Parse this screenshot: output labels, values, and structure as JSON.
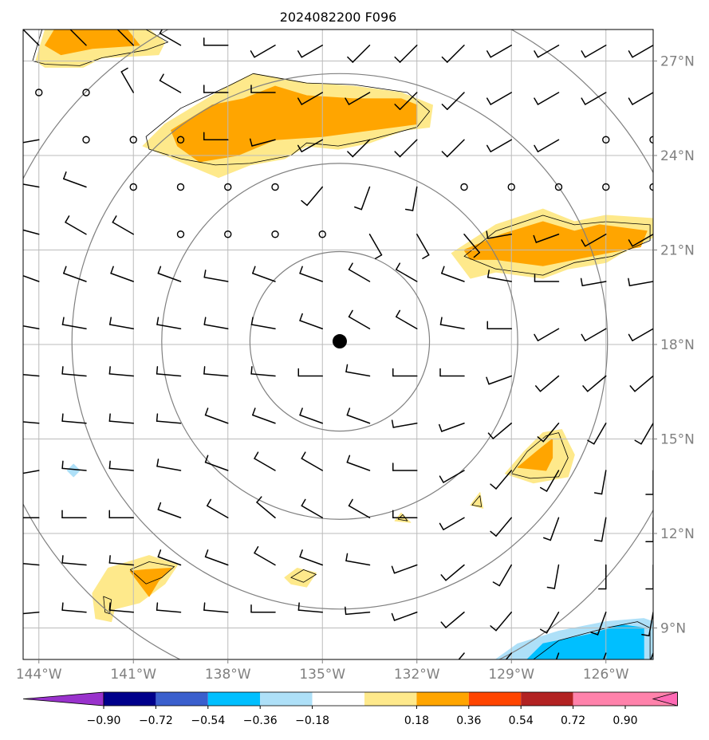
{
  "title": "2024082200 F096",
  "map": {
    "lon_range": [
      -144.5,
      -124.5
    ],
    "lat_range": [
      8,
      28
    ],
    "lon_ticks": [
      {
        "value": -144,
        "label": "144°W"
      },
      {
        "value": -141,
        "label": "141°W"
      },
      {
        "value": -138,
        "label": "138°W"
      },
      {
        "value": -135,
        "label": "135°W"
      },
      {
        "value": -132,
        "label": "132°W"
      },
      {
        "value": -129,
        "label": "129°W"
      },
      {
        "value": -126,
        "label": "126°W"
      }
    ],
    "lat_ticks": [
      {
        "value": 27,
        "label": "27°N"
      },
      {
        "value": 24,
        "label": "24°N"
      },
      {
        "value": 21,
        "label": "21°N"
      },
      {
        "value": 18,
        "label": "18°N"
      },
      {
        "value": 15,
        "label": "15°N"
      },
      {
        "value": 12,
        "label": "12°N"
      },
      {
        "value": 9,
        "label": "9°N"
      }
    ],
    "grid": true,
    "center": {
      "lon": -134.45,
      "lat": 18.1
    },
    "range_rings_deg": [
      2.85,
      5.65,
      8.5,
      11.3
    ],
    "colors": {
      "grid": "#bbbbbb",
      "axis_text": "#808080",
      "ring": "#808080",
      "pos1": "#fee98b",
      "pos2": "#ffa500",
      "neg1": "#aee0f8",
      "neg2": "#00bfff"
    }
  },
  "colorbar": {
    "tick_labels": [
      "−0.90",
      "−0.72",
      "−0.54",
      "−0.36",
      "−0.18",
      "0.18",
      "0.36",
      "0.54",
      "0.72",
      "0.90"
    ],
    "colors": [
      "#9932cc",
      "#00008b",
      "#3a5fcd",
      "#00bfff",
      "#aee0f8",
      "#ffffff",
      "#fee98b",
      "#ffa500",
      "#ff4500",
      "#b22222",
      "#ff82ab",
      "#ff69b4"
    ]
  },
  "barbs": {
    "lons": [
      -144,
      -142.5,
      -141,
      -139.5,
      -138,
      -136.5,
      -135,
      -133.5,
      -132,
      -130.5,
      -129,
      -127.5,
      -126,
      -124.5
    ],
    "rows": [
      {
        "lat": 27.5,
        "dirs": [
          315,
          315,
          315,
          300,
          270,
          240,
          240,
          225,
          225,
          225,
          240,
          240,
          240,
          240
        ]
      },
      {
        "lat": 26,
        "dirs": [
          "calm",
          "calm",
          330,
          300,
          270,
          270,
          240,
          240,
          225,
          225,
          240,
          240,
          240,
          240
        ]
      },
      {
        "lat": 24.5,
        "dirs": [
          260,
          "calm",
          "calm",
          "calm",
          270,
          255,
          240,
          225,
          225,
          225,
          240,
          240,
          "calm",
          "calm"
        ]
      },
      {
        "lat": 23,
        "dirs": [
          280,
          290,
          "calm",
          "calm",
          "calm",
          "calm",
          220,
          200,
          190,
          "calm",
          "calm",
          "calm",
          "calm",
          "calm"
        ]
      },
      {
        "lat": 21.5,
        "dirs": [
          285,
          300,
          300,
          "calm",
          "calm",
          "calm",
          "calm",
          150,
          150,
          140,
          260,
          250,
          240,
          240
        ]
      },
      {
        "lat": 20,
        "dirs": [
          290,
          290,
          290,
          290,
          280,
          290,
          290,
          300,
          300,
          290,
          280,
          270,
          260,
          260
        ]
      },
      {
        "lat": 18.5,
        "dirs": [
          280,
          280,
          280,
          280,
          280,
          280,
          290,
          300,
          300,
          280,
          270,
          240,
          240,
          240
        ]
      },
      {
        "lat": 17,
        "dirs": [
          275,
          275,
          275,
          275,
          275,
          275,
          270,
          280,
          270,
          270,
          250,
          230,
          230,
          230
        ]
      },
      {
        "lat": 15.5,
        "dirs": [
          275,
          275,
          275,
          275,
          290,
          290,
          290,
          290,
          260,
          250,
          230,
          220,
          210,
          210
        ]
      },
      {
        "lat": 14,
        "dirs": [
          260,
          275,
          275,
          280,
          290,
          300,
          300,
          290,
          270,
          240,
          220,
          210,
          190,
          180
        ]
      },
      {
        "lat": 12.5,
        "dirs": [
          270,
          270,
          270,
          290,
          300,
          310,
          300,
          300,
          270,
          240,
          220,
          200,
          190,
          180
        ]
      },
      {
        "lat": 11,
        "dirs": [
          275,
          275,
          275,
          290,
          290,
          300,
          290,
          280,
          250,
          230,
          210,
          190,
          180,
          180
        ]
      },
      {
        "lat": 9.5,
        "dirs": [
          265,
          275,
          275,
          275,
          275,
          270,
          275,
          265,
          250,
          230,
          220,
          210,
          200,
          190
        ]
      },
      {
        "lat": 8.2,
        "dirs": [
          null,
          null,
          null,
          null,
          null,
          null,
          null,
          null,
          null,
          220,
          220,
          200,
          200,
          200
        ]
      }
    ]
  },
  "fields": {
    "pos1": [
      [
        [
          -144.1,
          27.0
        ],
        [
          -143.8,
          28.0
        ],
        [
          -140.5,
          28.0
        ],
        [
          -140.0,
          27.6
        ],
        [
          -140.2,
          27.2
        ],
        [
          -142.0,
          27.1
        ],
        [
          -142.6,
          26.8
        ],
        [
          -143.8,
          26.8
        ]
      ],
      [
        [
          -140.0,
          25.0
        ],
        [
          -139.0,
          25.6
        ],
        [
          -138.0,
          26.2
        ],
        [
          -137.2,
          26.6
        ],
        [
          -135.5,
          26.3
        ],
        [
          -134.0,
          26.2
        ],
        [
          -132.5,
          26.0
        ],
        [
          -131.5,
          25.6
        ],
        [
          -131.6,
          24.9
        ],
        [
          -132.4,
          24.8
        ],
        [
          -133.5,
          24.4
        ],
        [
          -134.5,
          24.2
        ],
        [
          -135.5,
          24.3
        ],
        [
          -136.2,
          23.9
        ],
        [
          -137.3,
          23.7
        ],
        [
          -138.3,
          23.3
        ],
        [
          -139.5,
          23.8
        ],
        [
          -140.7,
          24.3
        ]
      ],
      [
        [
          -130.9,
          20.9
        ],
        [
          -129.5,
          21.8
        ],
        [
          -128.0,
          22.3
        ],
        [
          -127.0,
          21.9
        ],
        [
          -126.0,
          22.1
        ],
        [
          -124.5,
          22.0
        ],
        [
          -124.5,
          21.4
        ],
        [
          -125.5,
          20.9
        ],
        [
          -126.0,
          20.6
        ],
        [
          -127.2,
          20.4
        ],
        [
          -128.0,
          20.1
        ],
        [
          -129.5,
          20.3
        ],
        [
          -130.3,
          20.1
        ]
      ],
      [
        [
          -129.2,
          13.9
        ],
        [
          -128.6,
          14.6
        ],
        [
          -128.0,
          15.2
        ],
        [
          -127.4,
          15.3
        ],
        [
          -127.0,
          14.5
        ],
        [
          -127.2,
          13.8
        ],
        [
          -128.3,
          13.6
        ]
      ],
      [
        [
          -130.3,
          12.9
        ],
        [
          -130.0,
          13.3
        ],
        [
          -129.9,
          12.8
        ]
      ],
      [
        [
          -132.7,
          12.4
        ],
        [
          -132.5,
          12.65
        ],
        [
          -132.2,
          12.35
        ]
      ],
      [
        [
          -136.2,
          10.6
        ],
        [
          -135.8,
          10.9
        ],
        [
          -135.2,
          10.75
        ],
        [
          -135.5,
          10.3
        ],
        [
          -136.0,
          10.4
        ]
      ],
      [
        [
          -142.2,
          9.3
        ],
        [
          -142.3,
          10.1
        ],
        [
          -141.8,
          10.9
        ],
        [
          -140.5,
          11.3
        ],
        [
          -139.6,
          11.0
        ],
        [
          -140.0,
          10.4
        ],
        [
          -140.8,
          9.8
        ],
        [
          -141.6,
          9.6
        ],
        [
          -141.7,
          9.2
        ]
      ]
    ],
    "pos2": [
      [
        [
          -143.8,
          27.5
        ],
        [
          -143.5,
          28.0
        ],
        [
          -141.2,
          28.0
        ],
        [
          -140.8,
          27.5
        ],
        [
          -142.3,
          27.4
        ],
        [
          -143.3,
          27.2
        ]
      ],
      [
        [
          -139.8,
          24.8
        ],
        [
          -138.5,
          25.6
        ],
        [
          -137.5,
          25.8
        ],
        [
          -136.5,
          26.2
        ],
        [
          -135.5,
          25.9
        ],
        [
          -134.0,
          25.8
        ],
        [
          -132.5,
          25.8
        ],
        [
          -132.0,
          25.6
        ],
        [
          -132.0,
          25.0
        ],
        [
          -133.5,
          24.8
        ],
        [
          -135.0,
          24.6
        ],
        [
          -136.5,
          24.5
        ],
        [
          -137.7,
          24.0
        ],
        [
          -138.9,
          23.8
        ],
        [
          -139.6,
          24.3
        ]
      ],
      [
        [
          -130.5,
          21.0
        ],
        [
          -129.3,
          21.5
        ],
        [
          -128.0,
          21.9
        ],
        [
          -127.0,
          21.6
        ],
        [
          -126.2,
          21.8
        ],
        [
          -124.7,
          21.6
        ],
        [
          -124.9,
          21.1
        ],
        [
          -126.0,
          20.9
        ],
        [
          -127.0,
          20.7
        ],
        [
          -128.0,
          20.5
        ],
        [
          -129.5,
          20.7
        ],
        [
          -130.3,
          20.7
        ]
      ],
      [
        [
          -128.8,
          14.1
        ],
        [
          -128.2,
          14.6
        ],
        [
          -127.7,
          15.0
        ],
        [
          -127.7,
          14.4
        ],
        [
          -127.9,
          14.0
        ]
      ],
      [
        [
          -140.5,
          10.0
        ],
        [
          -140.2,
          10.5
        ],
        [
          -139.8,
          10.9
        ],
        [
          -140.6,
          10.85
        ],
        [
          -141.1,
          10.8
        ],
        [
          -140.8,
          10.4
        ]
      ]
    ],
    "neg1": [
      [
        [
          -129.5,
          8.0
        ],
        [
          -128.8,
          8.5
        ],
        [
          -127.5,
          8.9
        ],
        [
          -126.0,
          9.2
        ],
        [
          -124.8,
          9.3
        ],
        [
          -124.5,
          9.2
        ],
        [
          -124.5,
          8.0
        ]
      ],
      [
        [
          -143.1,
          14.0
        ],
        [
          -142.9,
          14.2
        ],
        [
          -142.7,
          14.0
        ],
        [
          -142.9,
          13.8
        ]
      ]
    ],
    "neg2": [
      [
        [
          -128.5,
          8.0
        ],
        [
          -128.0,
          8.5
        ],
        [
          -126.5,
          8.8
        ],
        [
          -125.5,
          9.1
        ],
        [
          -124.8,
          9.0
        ],
        [
          -124.8,
          8.0
        ]
      ]
    ],
    "contours_pos": [
      [
        [
          -144.2,
          27.0
        ],
        [
          -143.9,
          28.0
        ],
        [
          -140.6,
          28.0
        ],
        [
          -139.9,
          27.6
        ],
        [
          -140.6,
          27.35
        ],
        [
          -142.0,
          27.1
        ],
        [
          -142.7,
          26.85
        ],
        [
          -143.8,
          26.9
        ]
      ],
      [
        [
          -140.6,
          24.6
        ],
        [
          -139.5,
          25.5
        ],
        [
          -138.0,
          26.2
        ],
        [
          -137.2,
          26.6
        ],
        [
          -135.5,
          26.3
        ],
        [
          -134.0,
          26.25
        ],
        [
          -132.3,
          26.0
        ],
        [
          -131.6,
          25.4
        ],
        [
          -132.0,
          24.9
        ],
        [
          -133.5,
          24.5
        ],
        [
          -134.5,
          24.3
        ],
        [
          -135.5,
          24.4
        ],
        [
          -136.0,
          24.0
        ],
        [
          -137.3,
          23.75
        ],
        [
          -138.4,
          23.7
        ],
        [
          -139.5,
          23.9
        ],
        [
          -140.5,
          24.2
        ]
      ],
      [
        [
          -130.5,
          20.8
        ],
        [
          -129.5,
          21.6
        ],
        [
          -128.0,
          22.1
        ],
        [
          -127.0,
          21.8
        ],
        [
          -126.0,
          21.9
        ],
        [
          -124.6,
          21.8
        ],
        [
          -124.6,
          21.3
        ],
        [
          -125.8,
          20.8
        ],
        [
          -127.0,
          20.6
        ],
        [
          -128.0,
          20.2
        ],
        [
          -129.5,
          20.4
        ]
      ],
      [
        [
          -129.0,
          13.9
        ],
        [
          -128.5,
          14.6
        ],
        [
          -127.9,
          15.1
        ],
        [
          -127.5,
          15.2
        ],
        [
          -127.2,
          14.4
        ],
        [
          -127.5,
          13.8
        ],
        [
          -128.4,
          13.75
        ]
      ],
      [
        [
          -130.25,
          12.9
        ],
        [
          -130.0,
          13.2
        ],
        [
          -129.95,
          12.85
        ]
      ],
      [
        [
          -132.6,
          12.45
        ],
        [
          -132.45,
          12.6
        ],
        [
          -132.3,
          12.4
        ]
      ],
      [
        [
          -136.0,
          10.6
        ],
        [
          -135.6,
          10.85
        ],
        [
          -135.2,
          10.7
        ],
        [
          -135.6,
          10.45
        ]
      ],
      [
        [
          -141.9,
          9.5
        ],
        [
          -141.95,
          10.0
        ],
        [
          -141.7,
          9.9
        ],
        [
          -141.75,
          9.45
        ]
      ],
      [
        [
          -140.6,
          10.4
        ],
        [
          -140.1,
          10.6
        ],
        [
          -139.7,
          10.95
        ],
        [
          -140.5,
          11.1
        ],
        [
          -141.1,
          10.85
        ]
      ]
    ],
    "contours_neg": [
      [
        [
          -128.3,
          8.0
        ],
        [
          -127.5,
          8.6
        ],
        [
          -126.0,
          9.0
        ],
        [
          -125.0,
          9.2
        ],
        [
          -124.6,
          9.0
        ],
        [
          -124.6,
          8.0
        ]
      ]
    ]
  }
}
